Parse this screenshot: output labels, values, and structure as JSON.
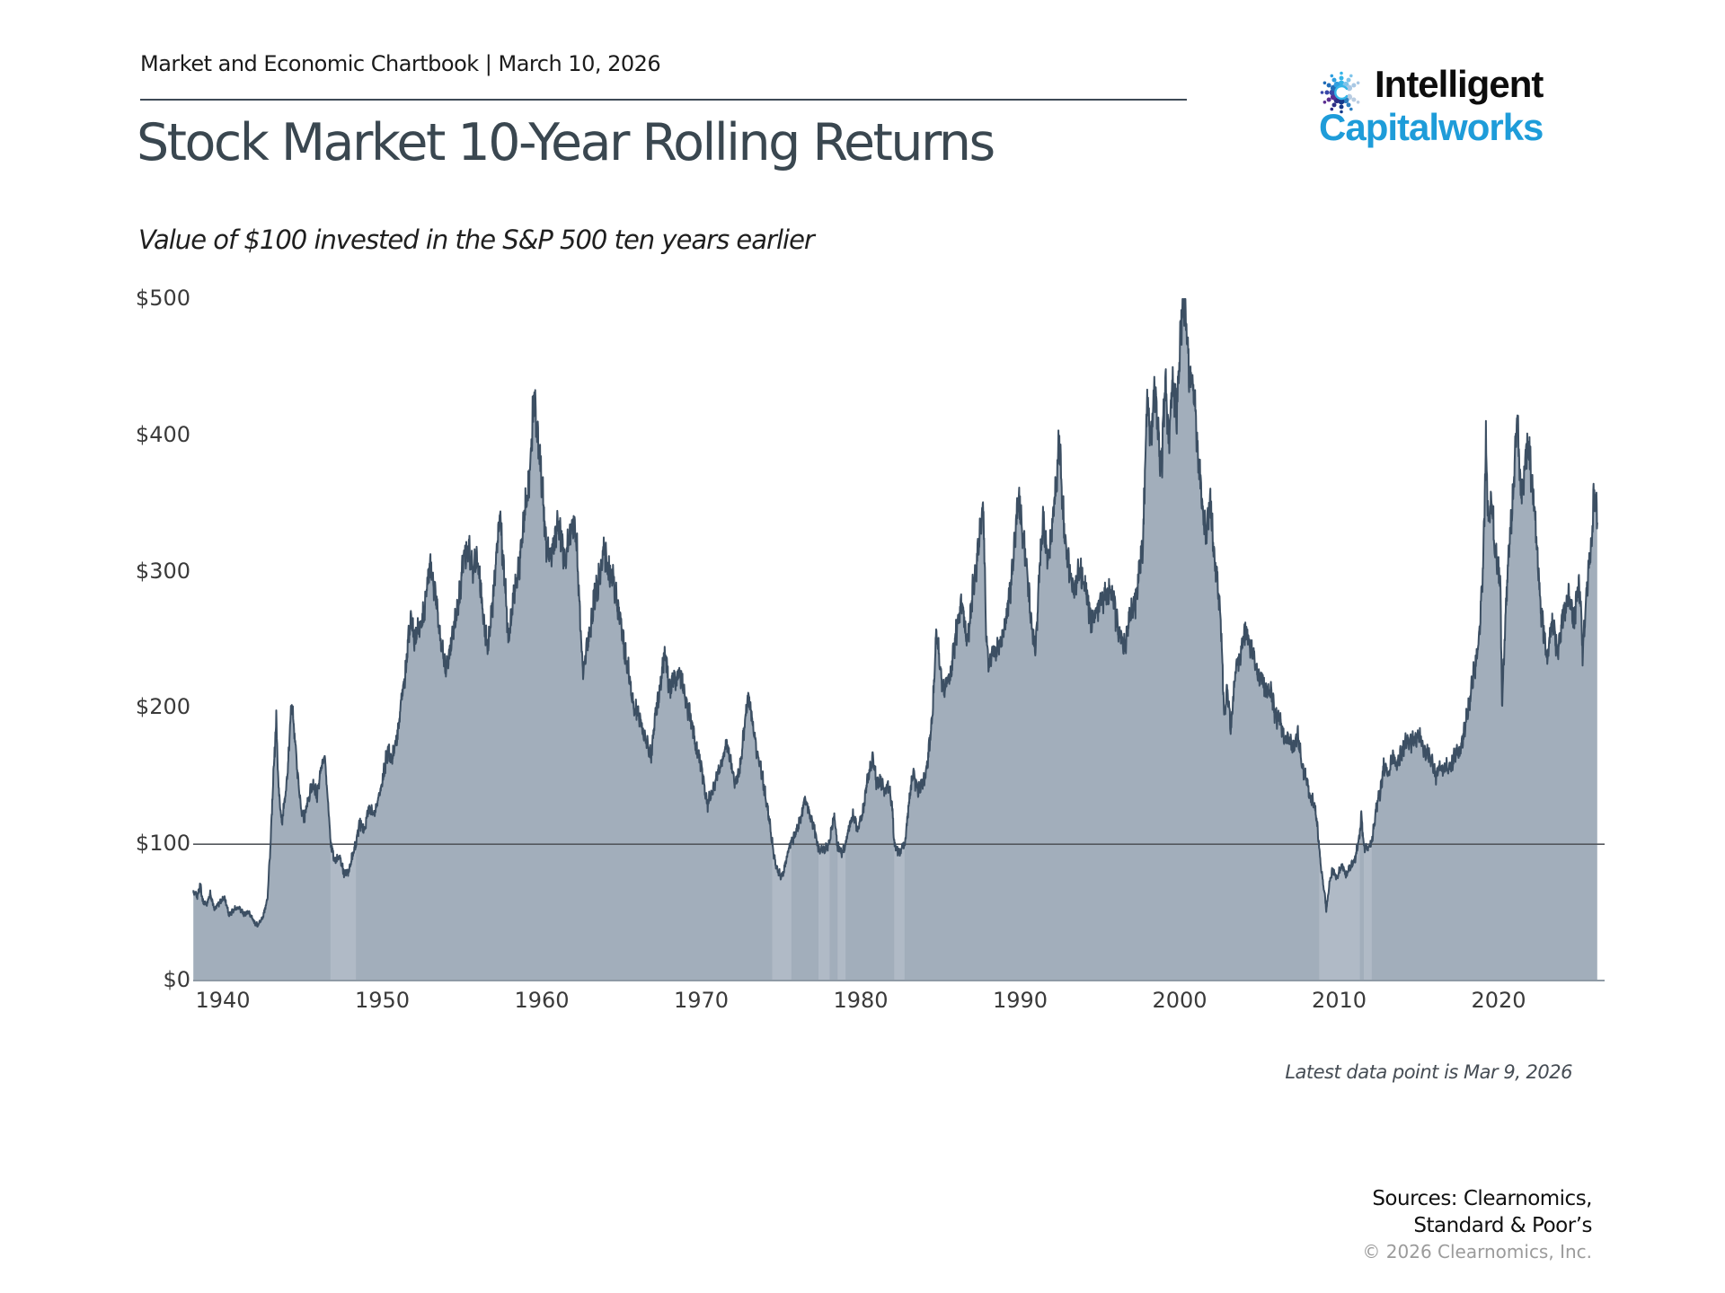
{
  "header": {
    "eyebrow": "Market and Economic Chartbook | March 10, 2026",
    "title": "Stock Market 10-Year Rolling Returns",
    "subtitle": "Value of $100 invested in the S&P 500 ten years earlier"
  },
  "logo": {
    "line1": "Intelligent",
    "line2": "Capitalworks",
    "accent_color": "#1e9cd9",
    "icon": "dotted-c-burst-icon",
    "icon_colors": [
      "#35b5e8",
      "#7fc4ea",
      "#a9c8e4",
      "#b9cde2",
      "#2d7fc0",
      "#153a8a",
      "#2d2f86",
      "#5b2d91",
      "#3948a8",
      "#1f6cb8",
      "#2e9fe0"
    ]
  },
  "footnotes": {
    "latest": "Latest data point is Mar 9, 2026",
    "sources_line1": "Sources: Clearnomics,",
    "sources_line2": "Standard & Poor’s",
    "copyright": "© 2026 Clearnomics, Inc."
  },
  "chart_data": {
    "type": "area",
    "title": "Stock Market 10-Year Rolling Returns",
    "xlabel": "",
    "ylabel": "",
    "series_name": "Value of $100 invested in the S&P 500 ten years earlier",
    "x_range": [
      1938.15,
      2026.19
    ],
    "ylim": [
      0,
      500
    ],
    "grid": false,
    "legend": false,
    "y_ticks": [
      {
        "label": "$500",
        "value": 500
      },
      {
        "label": "$400",
        "value": 400
      },
      {
        "label": "$300",
        "value": 300
      },
      {
        "label": "$200",
        "value": 200
      },
      {
        "label": "$100",
        "value": 100
      },
      {
        "label": "$0",
        "value": 0
      }
    ],
    "x_ticks": [
      1940,
      1950,
      1960,
      1970,
      1980,
      1990,
      2000,
      2010,
      2020
    ],
    "reference_line_value": 100,
    "below_100_periods": [
      [
        1946.75,
        1948.35
      ],
      [
        1974.45,
        1975.65
      ],
      [
        1977.35,
        1978.05
      ],
      [
        1978.55,
        1979.05
      ],
      [
        1982.1,
        1982.75
      ],
      [
        2008.75,
        2011.3
      ],
      [
        2011.55,
        2012.05
      ]
    ],
    "colors": {
      "fill": "#a2aebb",
      "fill_below_100": "#b0bac6",
      "line": "#3c4f63",
      "reference_line": "#53575c",
      "baseline": "#8f9aa5"
    },
    "anchors": [
      [
        1938.15,
        66
      ],
      [
        1938.4,
        62
      ],
      [
        1938.6,
        70
      ],
      [
        1938.75,
        58
      ],
      [
        1939.0,
        55
      ],
      [
        1939.2,
        64
      ],
      [
        1939.5,
        52
      ],
      [
        1939.8,
        58
      ],
      [
        1940.1,
        60
      ],
      [
        1940.4,
        48
      ],
      [
        1940.7,
        52
      ],
      [
        1941.0,
        55
      ],
      [
        1941.3,
        48
      ],
      [
        1941.6,
        50
      ],
      [
        1941.9,
        44
      ],
      [
        1942.2,
        41
      ],
      [
        1942.5,
        46
      ],
      [
        1942.8,
        60
      ],
      [
        1943.0,
        100
      ],
      [
        1943.2,
        160
      ],
      [
        1943.35,
        193
      ],
      [
        1943.5,
        140
      ],
      [
        1943.7,
        118
      ],
      [
        1943.9,
        132
      ],
      [
        1944.1,
        155
      ],
      [
        1944.3,
        208
      ],
      [
        1944.5,
        180
      ],
      [
        1944.7,
        150
      ],
      [
        1944.9,
        128
      ],
      [
        1945.1,
        118
      ],
      [
        1945.3,
        130
      ],
      [
        1945.6,
        142
      ],
      [
        1945.9,
        138
      ],
      [
        1946.2,
        158
      ],
      [
        1946.4,
        165
      ],
      [
        1946.6,
        130
      ],
      [
        1946.75,
        100
      ],
      [
        1947.0,
        88
      ],
      [
        1947.3,
        92
      ],
      [
        1947.6,
        80
      ],
      [
        1947.9,
        78
      ],
      [
        1948.1,
        90
      ],
      [
        1948.35,
        100
      ],
      [
        1948.6,
        118
      ],
      [
        1948.9,
        112
      ],
      [
        1949.2,
        128
      ],
      [
        1949.5,
        120
      ],
      [
        1949.8,
        138
      ],
      [
        1950.1,
        152
      ],
      [
        1950.35,
        172
      ],
      [
        1950.6,
        158
      ],
      [
        1950.9,
        178
      ],
      [
        1951.2,
        205
      ],
      [
        1951.5,
        235
      ],
      [
        1951.8,
        262
      ],
      [
        1952.1,
        248
      ],
      [
        1952.4,
        262
      ],
      [
        1952.7,
        280
      ],
      [
        1953.0,
        308
      ],
      [
        1953.3,
        282
      ],
      [
        1953.6,
        258
      ],
      [
        1953.95,
        228
      ],
      [
        1954.3,
        248
      ],
      [
        1954.6,
        262
      ],
      [
        1954.9,
        288
      ],
      [
        1955.15,
        315
      ],
      [
        1955.4,
        322
      ],
      [
        1955.65,
        298
      ],
      [
        1955.9,
        310
      ],
      [
        1956.15,
        288
      ],
      [
        1956.4,
        262
      ],
      [
        1956.65,
        245
      ],
      [
        1956.9,
        278
      ],
      [
        1957.15,
        305
      ],
      [
        1957.4,
        342
      ],
      [
        1957.65,
        300
      ],
      [
        1957.9,
        252
      ],
      [
        1958.2,
        278
      ],
      [
        1958.5,
        295
      ],
      [
        1958.8,
        325
      ],
      [
        1959.1,
        360
      ],
      [
        1959.35,
        395
      ],
      [
        1959.55,
        428
      ],
      [
        1959.75,
        398
      ],
      [
        1960.0,
        360
      ],
      [
        1960.25,
        330
      ],
      [
        1960.5,
        308
      ],
      [
        1960.75,
        322
      ],
      [
        1961.0,
        332
      ],
      [
        1961.25,
        318
      ],
      [
        1961.5,
        308
      ],
      [
        1961.75,
        330
      ],
      [
        1961.95,
        344
      ],
      [
        1962.2,
        315
      ],
      [
        1962.45,
        255
      ],
      [
        1962.6,
        222
      ],
      [
        1962.8,
        242
      ],
      [
        1963.0,
        258
      ],
      [
        1963.3,
        280
      ],
      [
        1963.6,
        295
      ],
      [
        1963.95,
        312
      ],
      [
        1964.2,
        302
      ],
      [
        1964.5,
        295
      ],
      [
        1964.8,
        272
      ],
      [
        1965.1,
        248
      ],
      [
        1965.4,
        230
      ],
      [
        1965.7,
        208
      ],
      [
        1966.0,
        196
      ],
      [
        1966.3,
        184
      ],
      [
        1966.6,
        172
      ],
      [
        1966.85,
        166
      ],
      [
        1967.1,
        192
      ],
      [
        1967.4,
        214
      ],
      [
        1967.75,
        238
      ],
      [
        1968.0,
        216
      ],
      [
        1968.3,
        222
      ],
      [
        1968.6,
        228
      ],
      [
        1968.9,
        212
      ],
      [
        1969.2,
        198
      ],
      [
        1969.5,
        184
      ],
      [
        1969.8,
        168
      ],
      [
        1970.1,
        150
      ],
      [
        1970.4,
        127
      ],
      [
        1970.7,
        140
      ],
      [
        1971.0,
        152
      ],
      [
        1971.3,
        162
      ],
      [
        1971.6,
        170
      ],
      [
        1971.9,
        158
      ],
      [
        1972.15,
        144
      ],
      [
        1972.4,
        158
      ],
      [
        1972.65,
        178
      ],
      [
        1972.95,
        212
      ],
      [
        1973.2,
        188
      ],
      [
        1973.5,
        170
      ],
      [
        1973.8,
        152
      ],
      [
        1974.1,
        130
      ],
      [
        1974.45,
        100
      ],
      [
        1974.7,
        84
      ],
      [
        1975.0,
        76
      ],
      [
        1975.3,
        86
      ],
      [
        1975.65,
        102
      ],
      [
        1976.0,
        110
      ],
      [
        1976.5,
        133
      ],
      [
        1976.9,
        118
      ],
      [
        1977.35,
        99
      ],
      [
        1977.7,
        95
      ],
      [
        1978.05,
        101
      ],
      [
        1978.35,
        121
      ],
      [
        1978.55,
        99
      ],
      [
        1978.8,
        94
      ],
      [
        1979.05,
        101
      ],
      [
        1979.3,
        112
      ],
      [
        1979.55,
        122
      ],
      [
        1979.8,
        110
      ],
      [
        1980.05,
        122
      ],
      [
        1980.3,
        138
      ],
      [
        1980.55,
        152
      ],
      [
        1980.75,
        163
      ],
      [
        1981.0,
        142
      ],
      [
        1981.25,
        150
      ],
      [
        1981.5,
        138
      ],
      [
        1981.75,
        146
      ],
      [
        1982.0,
        122
      ],
      [
        1982.1,
        99
      ],
      [
        1982.45,
        94
      ],
      [
        1982.75,
        101
      ],
      [
        1983.0,
        128
      ],
      [
        1983.3,
        152
      ],
      [
        1983.6,
        138
      ],
      [
        1983.9,
        146
      ],
      [
        1984.2,
        160
      ],
      [
        1984.5,
        196
      ],
      [
        1984.75,
        252
      ],
      [
        1985.0,
        228
      ],
      [
        1985.25,
        214
      ],
      [
        1985.5,
        222
      ],
      [
        1985.8,
        236
      ],
      [
        1986.1,
        262
      ],
      [
        1986.35,
        280
      ],
      [
        1986.6,
        252
      ],
      [
        1986.9,
        270
      ],
      [
        1987.2,
        298
      ],
      [
        1987.5,
        326
      ],
      [
        1987.7,
        347
      ],
      [
        1987.85,
        262
      ],
      [
        1988.05,
        228
      ],
      [
        1988.3,
        246
      ],
      [
        1988.6,
        238
      ],
      [
        1988.9,
        252
      ],
      [
        1989.2,
        272
      ],
      [
        1989.5,
        302
      ],
      [
        1989.75,
        332
      ],
      [
        1989.95,
        350
      ],
      [
        1990.2,
        322
      ],
      [
        1990.5,
        296
      ],
      [
        1990.8,
        252
      ],
      [
        1990.95,
        240
      ],
      [
        1991.2,
        298
      ],
      [
        1991.45,
        336
      ],
      [
        1991.7,
        312
      ],
      [
        1991.95,
        328
      ],
      [
        1992.2,
        360
      ],
      [
        1992.45,
        388
      ],
      [
        1992.7,
        342
      ],
      [
        1992.95,
        310
      ],
      [
        1993.2,
        298
      ],
      [
        1993.5,
        288
      ],
      [
        1993.8,
        302
      ],
      [
        1994.1,
        285
      ],
      [
        1994.4,
        272
      ],
      [
        1994.7,
        266
      ],
      [
        1995.0,
        278
      ],
      [
        1995.3,
        276
      ],
      [
        1995.6,
        292
      ],
      [
        1995.9,
        278
      ],
      [
        1996.15,
        258
      ],
      [
        1996.5,
        241
      ],
      [
        1996.8,
        262
      ],
      [
        1997.1,
        278
      ],
      [
        1997.4,
        292
      ],
      [
        1997.7,
        320
      ],
      [
        1997.95,
        420
      ],
      [
        1998.15,
        392
      ],
      [
        1998.4,
        442
      ],
      [
        1998.65,
        402
      ],
      [
        1998.85,
        378
      ],
      [
        1999.1,
        432
      ],
      [
        1999.3,
        398
      ],
      [
        1999.55,
        442
      ],
      [
        1999.8,
        418
      ],
      [
        2000.0,
        462
      ],
      [
        2000.2,
        495
      ],
      [
        2000.45,
        468
      ],
      [
        2000.7,
        440
      ],
      [
        2000.95,
        432
      ],
      [
        2001.2,
        382
      ],
      [
        2001.45,
        342
      ],
      [
        2001.7,
        328
      ],
      [
        2001.9,
        352
      ],
      [
        2002.15,
        318
      ],
      [
        2002.4,
        292
      ],
      [
        2002.6,
        262
      ],
      [
        2002.8,
        192
      ],
      [
        2003.0,
        212
      ],
      [
        2003.2,
        186
      ],
      [
        2003.45,
        222
      ],
      [
        2003.7,
        238
      ],
      [
        2003.95,
        248
      ],
      [
        2004.2,
        256
      ],
      [
        2004.5,
        242
      ],
      [
        2004.8,
        232
      ],
      [
        2005.1,
        222
      ],
      [
        2005.4,
        212
      ],
      [
        2005.7,
        208
      ],
      [
        2006.0,
        198
      ],
      [
        2006.3,
        192
      ],
      [
        2006.6,
        178
      ],
      [
        2006.9,
        172
      ],
      [
        2007.15,
        170
      ],
      [
        2007.4,
        181
      ],
      [
        2007.65,
        162
      ],
      [
        2007.9,
        150
      ],
      [
        2008.15,
        136
      ],
      [
        2008.4,
        128
      ],
      [
        2008.6,
        118
      ],
      [
        2008.75,
        100
      ],
      [
        2008.9,
        80
      ],
      [
        2009.1,
        62
      ],
      [
        2009.2,
        52
      ],
      [
        2009.4,
        72
      ],
      [
        2009.6,
        80
      ],
      [
        2009.8,
        76
      ],
      [
        2010.0,
        80
      ],
      [
        2010.2,
        84
      ],
      [
        2010.45,
        78
      ],
      [
        2010.7,
        82
      ],
      [
        2010.95,
        88
      ],
      [
        2011.15,
        98
      ],
      [
        2011.3,
        108
      ],
      [
        2011.4,
        124
      ],
      [
        2011.55,
        99
      ],
      [
        2011.75,
        96
      ],
      [
        2012.05,
        102
      ],
      [
        2012.3,
        122
      ],
      [
        2012.55,
        138
      ],
      [
        2012.8,
        158
      ],
      [
        2013.05,
        152
      ],
      [
        2013.3,
        162
      ],
      [
        2013.55,
        156
      ],
      [
        2013.8,
        164
      ],
      [
        2014.05,
        172
      ],
      [
        2014.3,
        181
      ],
      [
        2014.55,
        171
      ],
      [
        2014.8,
        176
      ],
      [
        2015.05,
        178
      ],
      [
        2015.3,
        172
      ],
      [
        2015.55,
        168
      ],
      [
        2015.8,
        160
      ],
      [
        2016.1,
        148
      ],
      [
        2016.35,
        154
      ],
      [
        2016.6,
        159
      ],
      [
        2016.85,
        156
      ],
      [
        2017.1,
        160
      ],
      [
        2017.35,
        164
      ],
      [
        2017.6,
        170
      ],
      [
        2017.85,
        182
      ],
      [
        2018.1,
        205
      ],
      [
        2018.35,
        218
      ],
      [
        2018.6,
        232
      ],
      [
        2018.85,
        262
      ],
      [
        2019.05,
        310
      ],
      [
        2019.2,
        402
      ],
      [
        2019.35,
        338
      ],
      [
        2019.55,
        352
      ],
      [
        2019.75,
        322
      ],
      [
        2019.95,
        302
      ],
      [
        2020.1,
        288
      ],
      [
        2020.22,
        200
      ],
      [
        2020.4,
        262
      ],
      [
        2020.6,
        308
      ],
      [
        2020.8,
        342
      ],
      [
        2021.0,
        382
      ],
      [
        2021.15,
        408
      ],
      [
        2021.3,
        372
      ],
      [
        2021.5,
        356
      ],
      [
        2021.7,
        382
      ],
      [
        2021.9,
        398
      ],
      [
        2022.05,
        378
      ],
      [
        2022.25,
        342
      ],
      [
        2022.45,
        308
      ],
      [
        2022.65,
        272
      ],
      [
        2022.85,
        248
      ],
      [
        2023.05,
        238
      ],
      [
        2023.25,
        262
      ],
      [
        2023.5,
        255
      ],
      [
        2023.75,
        242
      ],
      [
        2023.95,
        258
      ],
      [
        2024.15,
        272
      ],
      [
        2024.35,
        284
      ],
      [
        2024.55,
        276
      ],
      [
        2024.75,
        270
      ],
      [
        2024.95,
        288
      ],
      [
        2025.1,
        280
      ],
      [
        2025.28,
        238
      ],
      [
        2025.45,
        272
      ],
      [
        2025.6,
        292
      ],
      [
        2025.75,
        312
      ],
      [
        2025.9,
        342
      ],
      [
        2026.0,
        368
      ],
      [
        2026.08,
        342
      ],
      [
        2026.14,
        352
      ],
      [
        2026.19,
        336
      ]
    ]
  }
}
